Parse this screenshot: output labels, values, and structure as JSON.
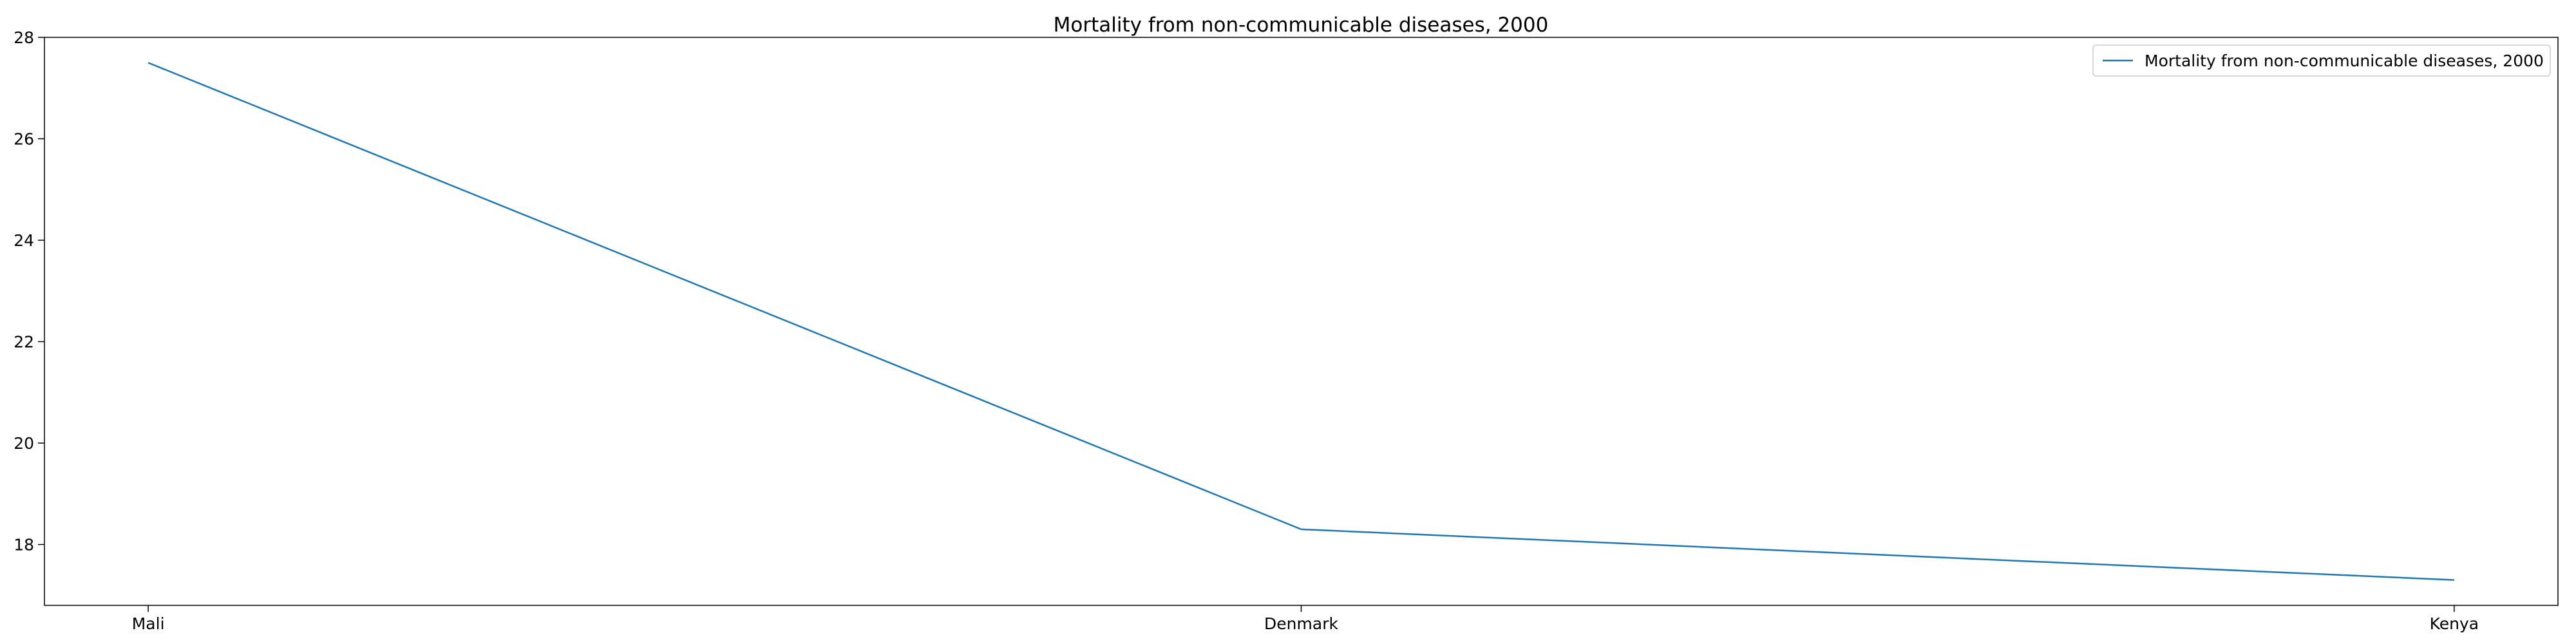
{
  "chart_data": {
    "type": "line",
    "title": "Mortality from non-communicable diseases, 2000",
    "xlabel": "",
    "ylabel": "",
    "categories": [
      "Mali",
      "Denmark",
      "Kenya"
    ],
    "series": [
      {
        "name": "Mortality from non-communicable diseases, 2000",
        "values": [
          27.5,
          18.3,
          17.3
        ],
        "color": "#1f77b4"
      }
    ],
    "ylim": [
      16.8,
      28
    ],
    "yticks": [
      18,
      20,
      22,
      24,
      26,
      28
    ],
    "grid": false,
    "legend": "upper-right"
  }
}
